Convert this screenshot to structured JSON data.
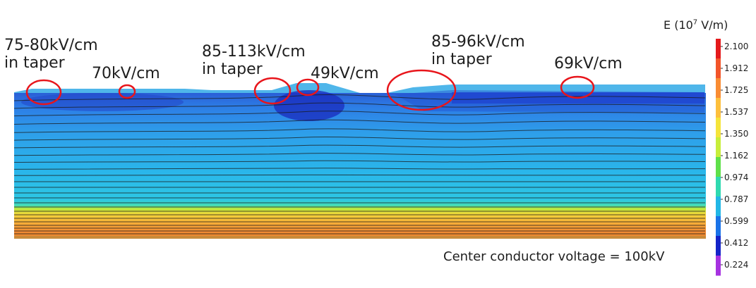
{
  "annotations": [
    {
      "line1": "75-80kV/cm",
      "line2": "in taper"
    },
    {
      "line1": "70kV/cm",
      "line2": ""
    },
    {
      "line1": "85-113kV/cm",
      "line2": "in taper"
    },
    {
      "line1": "49kV/cm",
      "line2": ""
    },
    {
      "line1": "85-96kV/cm",
      "line2": "in taper"
    },
    {
      "line1": "69kV/cm",
      "line2": ""
    }
  ],
  "note": "Center conductor voltage = 100kV",
  "colorbar": {
    "title_prefix": "E (10",
    "title_exp": "7",
    "title_suffix": " V/m)",
    "ticks": [
      "2.100",
      "1.912",
      "1.725",
      "1.537",
      "1.350",
      "1.162",
      "0.974",
      "0.787",
      "0.599",
      "0.412",
      "0.224"
    ],
    "colors": [
      "#e41a1c",
      "#f2552a",
      "#f98c33",
      "#fdbf3c",
      "#f5e43a",
      "#c7ee3a",
      "#5fe04a",
      "#2fd9b0",
      "#22b7e6",
      "#1a73e8",
      "#1424c8",
      "#a632e0"
    ]
  },
  "colors": {
    "field_light": "#2e9fea",
    "field_dark": "#1f52cf",
    "field_cyan": "#2cc6e9",
    "highlight_circle": "#e8151b"
  }
}
